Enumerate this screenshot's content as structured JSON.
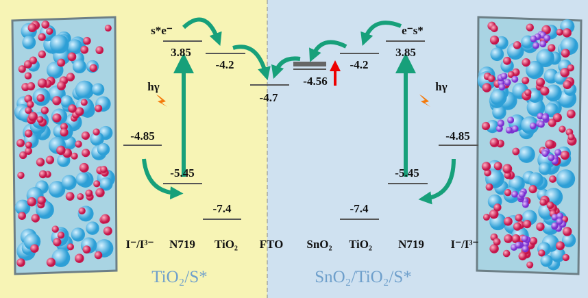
{
  "left_panel": {
    "title": "TiO₂/S*",
    "excitation": "s*e⁻",
    "light": "hγ",
    "levels": [
      "3.85",
      "-4.2",
      "-4.7",
      "-4.85",
      "-5.45",
      "-7.4"
    ],
    "labels": [
      "I⁻/I³⁻",
      "N719",
      "TiO₂",
      "FTO"
    ]
  },
  "right_panel": {
    "title": "SnO₂/TiO₂/S*",
    "excitation": "e⁻s*",
    "light": "hγ",
    "levels": [
      "-4.56",
      "-4.2",
      "3.85",
      "-4.85",
      "-5.45",
      "-7.4"
    ],
    "labels": [
      "SnO₂",
      "TiO₂",
      "N719",
      "I⁻/I³⁻"
    ]
  }
}
